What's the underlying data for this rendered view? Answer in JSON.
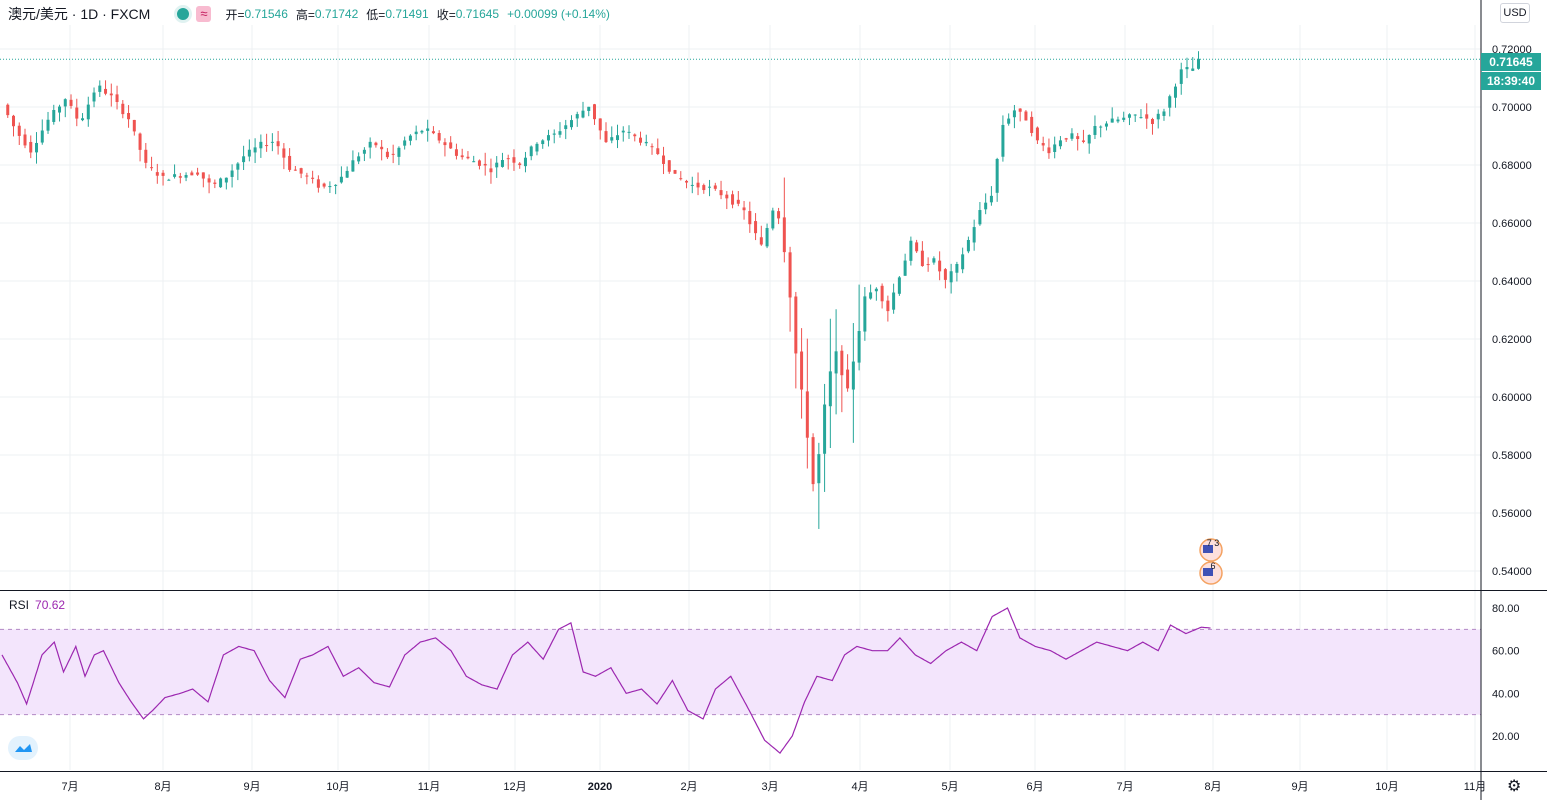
{
  "legend": {
    "symbol": "澳元/美元 · 1D · FXCM",
    "open_label": "开=",
    "open": "0.71546",
    "high_label": "高=",
    "high": "0.71742",
    "low_label": "低=",
    "low": "0.71491",
    "close_label": "收=",
    "close": "0.71645",
    "change": "+0.00099 (+0.14%)",
    "wave_icon": "≈"
  },
  "currency": "USD",
  "last_price": "0.71645",
  "countdown": "18:39:40",
  "rsi": {
    "label": "RSI",
    "value": "70.62"
  },
  "colors": {
    "up": "#26a69a",
    "down": "#ef5350",
    "rsi": "#9c27b0",
    "rsi_band": "#f3e5fc",
    "grid": "#eef0f3"
  },
  "events": {
    "top": "7 3",
    "bottom": "6"
  },
  "chart_data": [
    {
      "type": "candlestick",
      "y_ticks": [
        "0.72000",
        "0.70000",
        "0.68000",
        "0.66000",
        "0.64000",
        "0.62000",
        "0.60000",
        "0.58000",
        "0.56000",
        "0.54000"
      ],
      "ylim": [
        0.535,
        0.7215
      ],
      "x_ticks": [
        "7月",
        "8月",
        "9月",
        "10月",
        "11月",
        "12月",
        "2020",
        "2月",
        "3月",
        "4月",
        "5月",
        "6月",
        "7月",
        "8月",
        "9月",
        "10月",
        "11月"
      ],
      "series_anchor_points": [
        [
          0,
          0.7008
        ],
        [
          10,
          0.6915
        ],
        [
          20,
          0.685
        ],
        [
          32,
          0.6955
        ],
        [
          44,
          0.703
        ],
        [
          54,
          0.6945
        ],
        [
          66,
          0.7075
        ],
        [
          76,
          0.7035
        ],
        [
          88,
          0.696
        ],
        [
          100,
          0.68
        ],
        [
          112,
          0.6755
        ],
        [
          124,
          0.6765
        ],
        [
          136,
          0.6775
        ],
        [
          146,
          0.6725
        ],
        [
          156,
          0.676
        ],
        [
          168,
          0.683
        ],
        [
          180,
          0.687
        ],
        [
          190,
          0.6885
        ],
        [
          200,
          0.679
        ],
        [
          212,
          0.676
        ],
        [
          222,
          0.672
        ],
        [
          234,
          0.6745
        ],
        [
          246,
          0.6825
        ],
        [
          258,
          0.688
        ],
        [
          270,
          0.682
        ],
        [
          282,
          0.6895
        ],
        [
          294,
          0.6925
        ],
        [
          306,
          0.688
        ],
        [
          318,
          0.683
        ],
        [
          330,
          0.681
        ],
        [
          340,
          0.6785
        ],
        [
          350,
          0.683
        ],
        [
          360,
          0.6805
        ],
        [
          372,
          0.688
        ],
        [
          384,
          0.6905
        ],
        [
          396,
          0.6955
        ],
        [
          408,
          0.7005
        ],
        [
          420,
          0.6875
        ],
        [
          432,
          0.692
        ],
        [
          444,
          0.6885
        ],
        [
          456,
          0.684
        ],
        [
          468,
          0.676
        ],
        [
          480,
          0.673
        ],
        [
          492,
          0.672
        ],
        [
          504,
          0.669
        ],
        [
          516,
          0.664
        ],
        [
          528,
          0.652
        ],
        [
          538,
          0.668
        ],
        [
          546,
          0.645
        ],
        [
          552,
          0.615
        ],
        [
          558,
          0.595
        ],
        [
          564,
          0.57
        ],
        [
          568,
          0.58
        ],
        [
          574,
          0.605
        ],
        [
          580,
          0.615
        ],
        [
          588,
          0.602
        ],
        [
          594,
          0.618
        ],
        [
          600,
          0.634
        ],
        [
          608,
          0.638
        ],
        [
          616,
          0.63
        ],
        [
          624,
          0.642
        ],
        [
          632,
          0.653
        ],
        [
          640,
          0.646
        ],
        [
          648,
          0.647
        ],
        [
          656,
          0.64
        ],
        [
          664,
          0.645
        ],
        [
          672,
          0.654
        ],
        [
          680,
          0.664
        ],
        [
          688,
          0.67
        ],
        [
          696,
          0.694
        ],
        [
          704,
          0.699
        ],
        [
          712,
          0.696
        ],
        [
          720,
          0.688
        ],
        [
          728,
          0.685
        ],
        [
          736,
          0.689
        ],
        [
          744,
          0.69
        ],
        [
          752,
          0.687
        ],
        [
          760,
          0.693
        ],
        [
          770,
          0.695
        ],
        [
          780,
          0.696
        ],
        [
          790,
          0.6975
        ],
        [
          800,
          0.695
        ],
        [
          808,
          0.699
        ],
        [
          816,
          0.708
        ],
        [
          822,
          0.7145
        ],
        [
          826,
          0.7115
        ],
        [
          830,
          0.715
        ],
        [
          834,
          0.7165
        ]
      ]
    },
    {
      "type": "line",
      "name": "RSI",
      "ylim": [
        5,
        85
      ],
      "y_ticks": [
        "80.00",
        "60.00",
        "40.00",
        "20.00"
      ],
      "band": [
        30,
        70
      ],
      "values_anchor_points": [
        [
          0,
          58
        ],
        [
          10,
          45
        ],
        [
          16,
          35
        ],
        [
          26,
          58
        ],
        [
          34,
          64
        ],
        [
          40,
          50
        ],
        [
          48,
          62
        ],
        [
          54,
          48
        ],
        [
          60,
          58
        ],
        [
          66,
          60
        ],
        [
          76,
          45
        ],
        [
          84,
          36
        ],
        [
          92,
          28
        ],
        [
          98,
          32
        ],
        [
          106,
          38
        ],
        [
          116,
          40
        ],
        [
          124,
          42
        ],
        [
          134,
          36
        ],
        [
          144,
          58
        ],
        [
          154,
          62
        ],
        [
          164,
          60
        ],
        [
          174,
          46
        ],
        [
          184,
          38
        ],
        [
          194,
          56
        ],
        [
          202,
          58
        ],
        [
          212,
          62
        ],
        [
          222,
          48
        ],
        [
          232,
          52
        ],
        [
          242,
          45
        ],
        [
          252,
          43
        ],
        [
          262,
          58
        ],
        [
          272,
          64
        ],
        [
          282,
          66
        ],
        [
          292,
          60
        ],
        [
          302,
          48
        ],
        [
          312,
          44
        ],
        [
          322,
          42
        ],
        [
          332,
          58
        ],
        [
          342,
          64
        ],
        [
          352,
          56
        ],
        [
          362,
          70
        ],
        [
          370,
          73
        ],
        [
          378,
          50
        ],
        [
          386,
          48
        ],
        [
          396,
          52
        ],
        [
          406,
          40
        ],
        [
          416,
          42
        ],
        [
          426,
          35
        ],
        [
          436,
          46
        ],
        [
          446,
          32
        ],
        [
          456,
          28
        ],
        [
          464,
          42
        ],
        [
          474,
          48
        ],
        [
          486,
          32
        ],
        [
          496,
          18
        ],
        [
          506,
          12
        ],
        [
          514,
          20
        ],
        [
          522,
          36
        ],
        [
          530,
          48
        ],
        [
          540,
          46
        ],
        [
          548,
          58
        ],
        [
          556,
          62
        ],
        [
          566,
          60
        ],
        [
          576,
          60
        ],
        [
          584,
          66
        ],
        [
          594,
          58
        ],
        [
          604,
          54
        ],
        [
          614,
          60
        ],
        [
          624,
          64
        ],
        [
          634,
          60
        ],
        [
          644,
          76
        ],
        [
          654,
          80
        ],
        [
          662,
          66
        ],
        [
          672,
          62
        ],
        [
          682,
          60
        ],
        [
          692,
          56
        ],
        [
          702,
          60
        ],
        [
          712,
          64
        ],
        [
          722,
          62
        ],
        [
          732,
          60
        ],
        [
          742,
          64
        ],
        [
          752,
          60
        ],
        [
          760,
          72
        ],
        [
          770,
          68
        ],
        [
          780,
          71
        ],
        [
          786,
          70.62
        ]
      ]
    }
  ]
}
